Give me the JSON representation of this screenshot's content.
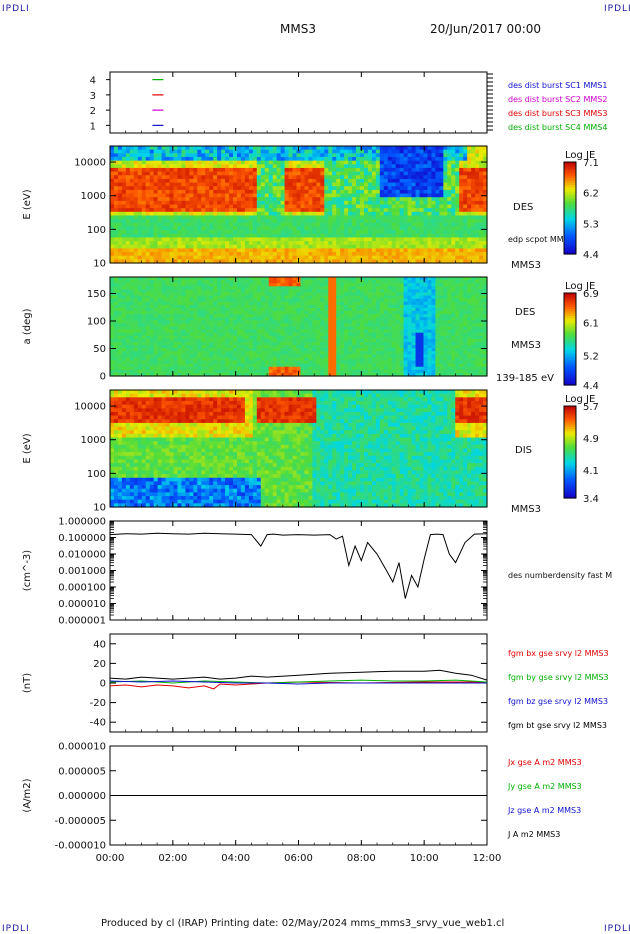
{
  "header": {
    "corner_left": "IPDLI",
    "corner_right": "IPDLI",
    "title": "MMS3",
    "date": "20/Jun/2017 00:00"
  },
  "footer": {
    "credit": "Produced by cl (IRAP)   Printing date: 02/May/2024   mms_mms3_srvy_vue_web1.cl",
    "corner_left": "IPDLI",
    "corner_right": "IPDLI"
  },
  "colors": {
    "mms1": "#1010d0",
    "mms2": "#d000d0",
    "mms3": "#e00000",
    "mms4": "#00b000",
    "bx": "#e00000",
    "by": "#00b000",
    "bz": "#1010d0",
    "bt": "#000000"
  },
  "chart_data": [
    {
      "id": "availability",
      "type": "line",
      "y_ticks": [
        "4",
        "3",
        "2",
        "1"
      ],
      "ylim": [
        0.5,
        4.5
      ],
      "legend": [
        {
          "label": "des dist burst SC1 MMS1",
          "color": "#1010d0"
        },
        {
          "label": "des dist burst SC2 MMS2",
          "color": "#d000d0"
        },
        {
          "label": "des dist burst SC3 MMS3",
          "color": "#e00000"
        },
        {
          "label": "des dist burst SC4 MMS4",
          "color": "#00b000"
        }
      ],
      "segments": [
        {
          "y": 4,
          "x0": 1.35,
          "x1": 1.7,
          "color": "#00b000"
        },
        {
          "y": 3,
          "x0": 1.35,
          "x1": 1.7,
          "color": "#e00000"
        },
        {
          "y": 2,
          "x0": 1.35,
          "x1": 1.7,
          "color": "#d000d0"
        },
        {
          "y": 1,
          "x0": 1.35,
          "x1": 1.7,
          "color": "#1010d0"
        }
      ]
    },
    {
      "id": "des-energy",
      "type": "heatmap",
      "ylabel": "E (eV)",
      "y_ticks": [
        "10000",
        "1000",
        "100",
        "10"
      ],
      "scale": "log",
      "ylim": [
        10,
        30000
      ],
      "right_labels": [
        "DES",
        "edp scpot MMS3",
        "MMS3"
      ],
      "colorbar": {
        "title": "Log JE",
        "ticks": [
          "7.1",
          "6.2",
          "5.3",
          "4.4"
        ],
        "min": 4.4,
        "max": 7.1
      }
    },
    {
      "id": "des-pitch",
      "type": "heatmap",
      "ylabel": "a (deg)",
      "y_ticks": [
        "150",
        "100",
        "50",
        "0"
      ],
      "ylim": [
        0,
        180
      ],
      "right_labels": [
        "DES",
        "MMS3",
        "139-185 eV"
      ],
      "colorbar": {
        "title": "Log JE",
        "ticks": [
          "6.9",
          "6.1",
          "5.2",
          "4.4"
        ],
        "min": 4.4,
        "max": 6.9
      }
    },
    {
      "id": "dis-energy",
      "type": "heatmap",
      "ylabel": "E (eV)",
      "y_ticks": [
        "10000",
        "1000",
        "100",
        "10"
      ],
      "scale": "log",
      "ylim": [
        10,
        30000
      ],
      "right_labels": [
        "DIS",
        "MMS3"
      ],
      "colorbar": {
        "title": "Log JE",
        "ticks": [
          "5.7",
          "4.9",
          "4.1",
          "3.4"
        ],
        "min": 3.4,
        "max": 5.7
      }
    },
    {
      "id": "density",
      "type": "line",
      "ylabel": "(cm^-3)",
      "y_ticks": [
        "1.000000",
        "0.100000",
        "0.010000",
        "0.001000",
        "0.000100",
        "0.000010",
        "0.000001"
      ],
      "scale": "log",
      "ylim": [
        1e-06,
        1.0
      ],
      "legend": [
        {
          "label": "des numberdensity fast M",
          "color": "#000000"
        }
      ],
      "series": [
        {
          "t": [
            0,
            0.5,
            1,
            1.5,
            2,
            2.5,
            3,
            3.5,
            4,
            4.5,
            4.8,
            5.0,
            5.2,
            5.5,
            6,
            6.5,
            7,
            7.2,
            7.4,
            7.6,
            7.8,
            8.0,
            8.2,
            8.5,
            8.8,
            9.0,
            9.2,
            9.4,
            9.6,
            9.8,
            10.0,
            10.2,
            10.4,
            10.6,
            10.8,
            11.0,
            11.3,
            11.6,
            12
          ],
          "v": [
            0.15,
            0.17,
            0.16,
            0.18,
            0.17,
            0.16,
            0.18,
            0.17,
            0.16,
            0.15,
            0.03,
            0.15,
            0.16,
            0.14,
            0.15,
            0.14,
            0.15,
            0.08,
            0.12,
            0.002,
            0.03,
            0.004,
            0.05,
            0.01,
            0.001,
            0.0002,
            0.003,
            2e-05,
            0.0005,
            0.0001,
            0.005,
            0.15,
            0.16,
            0.15,
            0.01,
            0.003,
            0.05,
            0.16,
            0.17
          ]
        }
      ]
    },
    {
      "id": "magnetic-field",
      "type": "line",
      "ylabel": "(nT)",
      "y_ticks": [
        "40",
        "20",
        "0",
        "-20",
        "-40"
      ],
      "ylim": [
        -50,
        50
      ],
      "legend": [
        {
          "label": "fgm bx gse srvy l2 MMS3",
          "color": "#e00000"
        },
        {
          "label": "fgm by gse srvy l2 MMS3",
          "color": "#00b000"
        },
        {
          "label": "fgm bz gse srvy l2 MMS3",
          "color": "#1010d0"
        },
        {
          "label": "fgm bt gse srvy l2 MMS3",
          "color": "#000000"
        }
      ],
      "series": [
        {
          "name": "bt",
          "t": [
            0,
            0.5,
            1,
            1.5,
            2,
            2.5,
            3,
            3.5,
            4,
            4.5,
            5,
            6,
            7,
            8,
            9,
            10,
            10.5,
            11,
            11.5,
            12
          ],
          "v": [
            5,
            4,
            6,
            5,
            4,
            5,
            6,
            4,
            5,
            7,
            6,
            8,
            10,
            11,
            12,
            12,
            13,
            10,
            8,
            3
          ]
        },
        {
          "name": "bx",
          "t": [
            0,
            0.5,
            1,
            1.5,
            2,
            2.5,
            3,
            3.3,
            3.5,
            4,
            5,
            6,
            8,
            10,
            12
          ],
          "v": [
            -3,
            -2,
            -4,
            -2,
            -3,
            -5,
            -3,
            -6,
            -1,
            -2,
            0,
            1,
            0,
            1,
            1
          ]
        },
        {
          "name": "by",
          "t": [
            0,
            1,
            2,
            3,
            4,
            5,
            6,
            7,
            8,
            9,
            10,
            11,
            12
          ],
          "v": [
            1,
            2,
            0,
            2,
            1,
            0,
            1,
            2,
            3,
            2,
            2,
            3,
            1
          ]
        },
        {
          "name": "bz",
          "t": [
            0,
            1,
            2,
            3,
            4,
            5,
            6,
            7,
            8,
            9,
            10,
            11,
            12
          ],
          "v": [
            2,
            1,
            2,
            1,
            0,
            0,
            -1,
            0,
            0,
            0,
            0,
            0,
            0
          ]
        }
      ]
    },
    {
      "id": "current-density",
      "type": "line",
      "ylabel": "(A/m2)",
      "y_ticks": [
        "0.000010",
        "0.000005",
        "0.000000",
        "-0.000005",
        "-0.000010"
      ],
      "ylim": [
        -1e-05,
        1e-05
      ],
      "legend": [
        {
          "label": "Jx gse A m2 MMS3",
          "color": "#e00000"
        },
        {
          "label": "Jy gse A m2 MMS3",
          "color": "#00b000"
        },
        {
          "label": "Jz gse A m2 MMS3",
          "color": "#1010d0"
        },
        {
          "label": "J A m2 MMS3",
          "color": "#000000"
        }
      ],
      "series": [
        {
          "name": "J",
          "t": [
            0,
            12
          ],
          "v": [
            0,
            0
          ]
        }
      ]
    }
  ],
  "x_axis": {
    "ticks": [
      "00:00",
      "02:00",
      "04:00",
      "06:00",
      "08:00",
      "10:00",
      "12:00"
    ],
    "xlim": [
      0,
      12
    ]
  }
}
